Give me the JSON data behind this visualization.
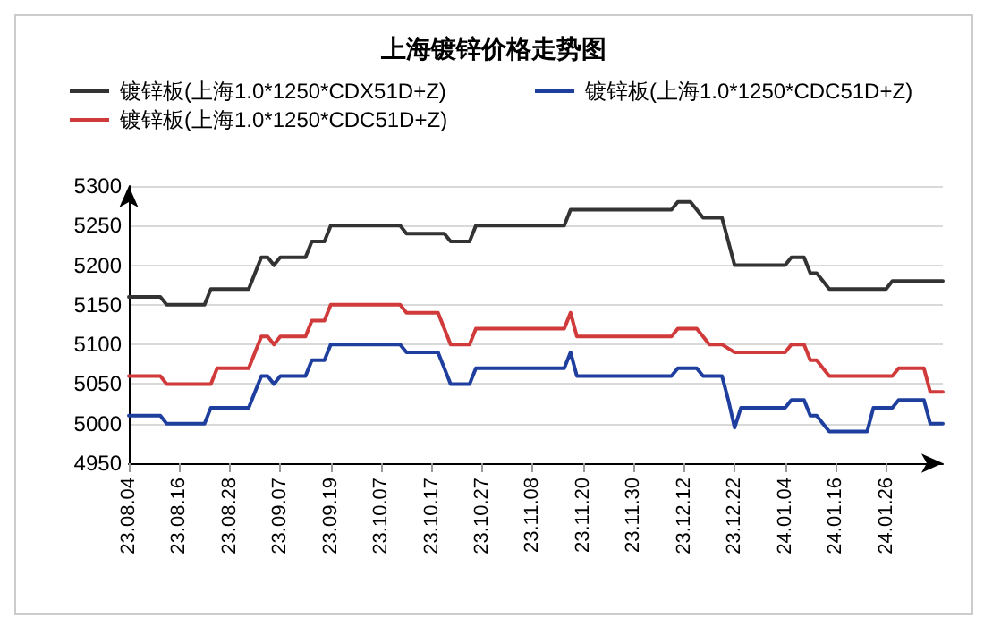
{
  "chart_data": {
    "type": "line",
    "title": "上海镀锌价格走势图",
    "categories": [
      "23.08.04",
      null,
      null,
      null,
      null,
      null,
      null,
      null,
      "23.08.16",
      null,
      null,
      null,
      null,
      null,
      null,
      null,
      "23.08.28",
      null,
      null,
      null,
      null,
      null,
      null,
      null,
      "23.09.07",
      null,
      null,
      null,
      null,
      null,
      null,
      null,
      "23.09.19",
      null,
      null,
      null,
      null,
      null,
      null,
      null,
      "23.10.07",
      null,
      null,
      null,
      null,
      null,
      null,
      null,
      "23.10.17",
      null,
      null,
      null,
      null,
      null,
      null,
      null,
      "23.10.27",
      null,
      null,
      null,
      null,
      null,
      null,
      null,
      "23.11.08",
      null,
      null,
      null,
      null,
      null,
      null,
      null,
      "23.11.20",
      null,
      null,
      null,
      null,
      null,
      null,
      null,
      "23.11.30",
      null,
      null,
      null,
      null,
      null,
      null,
      null,
      "23.12.12",
      null,
      null,
      null,
      null,
      null,
      null,
      null,
      "23.12.22",
      null,
      null,
      null,
      null,
      null,
      null,
      null,
      "24.01.04",
      null,
      null,
      null,
      null,
      null,
      null,
      null,
      "24.01.16",
      null,
      null,
      null,
      null,
      null,
      null,
      null,
      "24.01.26",
      null,
      null,
      null,
      null,
      null,
      null,
      null,
      null,
      null
    ],
    "series": [
      {
        "name": "镀锌板(上海1.0*1250*CDX51D+Z)",
        "color": "#333333",
        "values": [
          5160,
          5160,
          5160,
          5160,
          5160,
          5160,
          5150,
          5150,
          5150,
          5150,
          5150,
          5150,
          5150,
          5170,
          5170,
          5170,
          5170,
          5170,
          5170,
          5170,
          5190,
          5210,
          5210,
          5200,
          5210,
          5210,
          5210,
          5210,
          5210,
          5230,
          5230,
          5230,
          5250,
          5250,
          5250,
          5250,
          5250,
          5250,
          5250,
          5250,
          5250,
          5250,
          5250,
          5250,
          5240,
          5240,
          5240,
          5240,
          5240,
          5240,
          5240,
          5230,
          5230,
          5230,
          5230,
          5250,
          5250,
          5250,
          5250,
          5250,
          5250,
          5250,
          5250,
          5250,
          5250,
          5250,
          5250,
          5250,
          5250,
          5250,
          5270,
          5270,
          5270,
          5270,
          5270,
          5270,
          5270,
          5270,
          5270,
          5270,
          5270,
          5270,
          5270,
          5270,
          5270,
          5270,
          5270,
          5280,
          5280,
          5280,
          5270,
          5260,
          5260,
          5260,
          5260,
          5230,
          5200,
          5200,
          5200,
          5200,
          5200,
          5200,
          5200,
          5200,
          5200,
          5210,
          5210,
          5210,
          5190,
          5190,
          5180,
          5170,
          5170,
          5170,
          5170,
          5170,
          5170,
          5170,
          5170,
          5170,
          5170,
          5180,
          5180,
          5180,
          5180,
          5180,
          5180,
          5180,
          5180,
          5180
        ]
      },
      {
        "name": "镀锌板(上海1.0*1250*CDC51D+Z)",
        "color": "#1f3f9f",
        "values": [
          5010,
          5010,
          5010,
          5010,
          5010,
          5010,
          5000,
          5000,
          5000,
          5000,
          5000,
          5000,
          5000,
          5020,
          5020,
          5020,
          5020,
          5020,
          5020,
          5020,
          5040,
          5060,
          5060,
          5050,
          5060,
          5060,
          5060,
          5060,
          5060,
          5080,
          5080,
          5080,
          5100,
          5100,
          5100,
          5100,
          5100,
          5100,
          5100,
          5100,
          5100,
          5100,
          5100,
          5100,
          5090,
          5090,
          5090,
          5090,
          5090,
          5090,
          5070,
          5050,
          5050,
          5050,
          5050,
          5070,
          5070,
          5070,
          5070,
          5070,
          5070,
          5070,
          5070,
          5070,
          5070,
          5070,
          5070,
          5070,
          5070,
          5070,
          5090,
          5060,
          5060,
          5060,
          5060,
          5060,
          5060,
          5060,
          5060,
          5060,
          5060,
          5060,
          5060,
          5060,
          5060,
          5060,
          5060,
          5070,
          5070,
          5070,
          5070,
          5060,
          5060,
          5060,
          5060,
          5030,
          4995,
          5020,
          5020,
          5020,
          5020,
          5020,
          5020,
          5020,
          5020,
          5030,
          5030,
          5030,
          5010,
          5010,
          5000,
          4990,
          4990,
          4990,
          4990,
          4990,
          4990,
          4990,
          5020,
          5020,
          5020,
          5020,
          5030,
          5030,
          5030,
          5030,
          5030,
          5000,
          5000,
          5000
        ]
      },
      {
        "name": "镀锌板(上海1.0*1250*CDC51D+Z)",
        "color": "#d03a3a",
        "values": [
          5060,
          5060,
          5060,
          5060,
          5060,
          5060,
          5050,
          5050,
          5050,
          5050,
          5050,
          5050,
          5050,
          5050,
          5070,
          5070,
          5070,
          5070,
          5070,
          5070,
          5090,
          5110,
          5110,
          5100,
          5110,
          5110,
          5110,
          5110,
          5110,
          5130,
          5130,
          5130,
          5150,
          5150,
          5150,
          5150,
          5150,
          5150,
          5150,
          5150,
          5150,
          5150,
          5150,
          5150,
          5140,
          5140,
          5140,
          5140,
          5140,
          5140,
          5120,
          5100,
          5100,
          5100,
          5100,
          5120,
          5120,
          5120,
          5120,
          5120,
          5120,
          5120,
          5120,
          5120,
          5120,
          5120,
          5120,
          5120,
          5120,
          5120,
          5140,
          5110,
          5110,
          5110,
          5110,
          5110,
          5110,
          5110,
          5110,
          5110,
          5110,
          5110,
          5110,
          5110,
          5110,
          5110,
          5110,
          5120,
          5120,
          5120,
          5120,
          5110,
          5100,
          5100,
          5100,
          5095,
          5090,
          5090,
          5090,
          5090,
          5090,
          5090,
          5090,
          5090,
          5090,
          5100,
          5100,
          5100,
          5080,
          5080,
          5070,
          5060,
          5060,
          5060,
          5060,
          5060,
          5060,
          5060,
          5060,
          5060,
          5060,
          5060,
          5070,
          5070,
          5070,
          5070,
          5070,
          5040,
          5040,
          5040
        ]
      }
    ],
    "ylim": [
      4950,
      5300
    ],
    "yticks": [
      4950,
      5000,
      5050,
      5100,
      5150,
      5200,
      5250,
      5300
    ],
    "grid": "y",
    "legend": "top",
    "marker": "none",
    "line_style": "solid"
  }
}
